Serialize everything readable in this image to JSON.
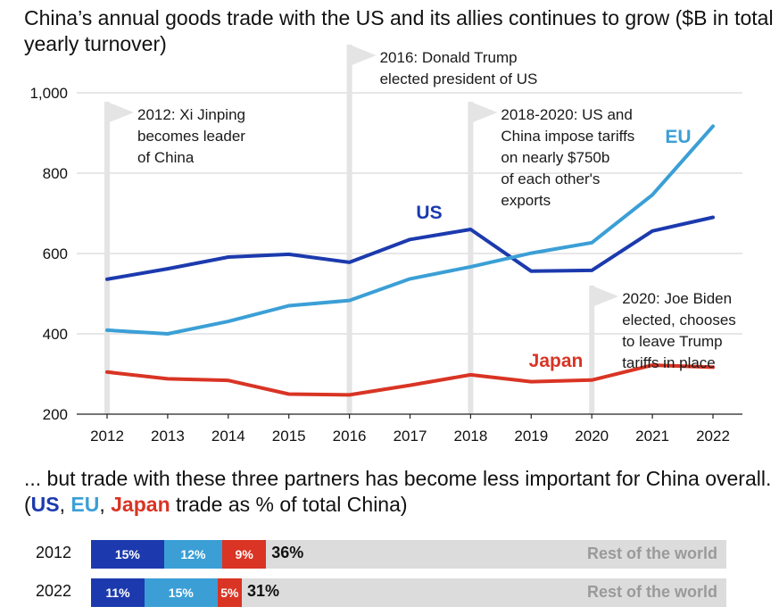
{
  "title": "China’s annual goods trade with the US and its allies continues to grow ($B in total yearly turnover)",
  "colors": {
    "US": "#1c3aae",
    "EU": "#3b9fd6",
    "Japan": "#d93424",
    "flag": "#e4e4e4",
    "rest": "#dcdcdc"
  },
  "chart_data": [
    {
      "type": "line",
      "title": "China’s annual goods trade with the US and its allies continues to grow ($B in total yearly turnover)",
      "x": [
        "2012",
        "2013",
        "2014",
        "2015",
        "2016",
        "2017",
        "2018",
        "2019",
        "2020",
        "2021",
        "2022"
      ],
      "ylim": [
        200,
        1000
      ],
      "yticks": [
        "1,000",
        "800",
        "600",
        "400",
        "200"
      ],
      "ytick_values": [
        1000,
        800,
        600,
        400,
        200
      ],
      "grid": true,
      "series": [
        {
          "name": "US",
          "values": [
            536,
            562,
            591,
            598,
            578,
            635,
            660,
            556,
            558,
            656,
            690
          ]
        },
        {
          "name": "EU",
          "values": [
            409,
            400,
            431,
            470,
            483,
            537,
            567,
            601,
            627,
            746,
            917
          ]
        },
        {
          "name": "Japan",
          "values": [
            305,
            288,
            284,
            250,
            248,
            272,
            298,
            281,
            285,
            322,
            317
          ]
        }
      ],
      "annotations": [
        {
          "year": "2012",
          "lines": [
            "2012: Xi Jinping",
            "becomes leader",
            "of China"
          ]
        },
        {
          "year": "2016",
          "lines": [
            "2016: Donald Trump",
            "elected president of US"
          ]
        },
        {
          "year": "2018",
          "lines": [
            "2018-2020: US and",
            "China impose tariffs",
            "on nearly $750b",
            "of each other's",
            "exports"
          ]
        },
        {
          "year": "2020",
          "lines": [
            "2020: Joe Biden",
            "elected, chooses",
            "to leave Trump",
            "tariffs in place"
          ]
        }
      ]
    },
    {
      "type": "bar",
      "subtitle_lead": "... but trade with these three partners has become less important for China overall. (",
      "subtitle_us": "US",
      "subtitle_comma1": ", ",
      "subtitle_eu": "EU",
      "subtitle_comma2": ", ",
      "subtitle_jp": "Japan",
      "subtitle_tail": " trade as % of total China)",
      "rest_label": "Rest of the world",
      "rows": [
        {
          "year": "2012",
          "segments": [
            15,
            12,
            9
          ],
          "segment_labels": [
            "15%",
            "12%",
            "9%"
          ],
          "total": "36%"
        },
        {
          "year": "2022",
          "segments": [
            11,
            15,
            5
          ],
          "segment_labels": [
            "11%",
            "15%",
            "5%"
          ],
          "total": "31%"
        }
      ]
    }
  ]
}
